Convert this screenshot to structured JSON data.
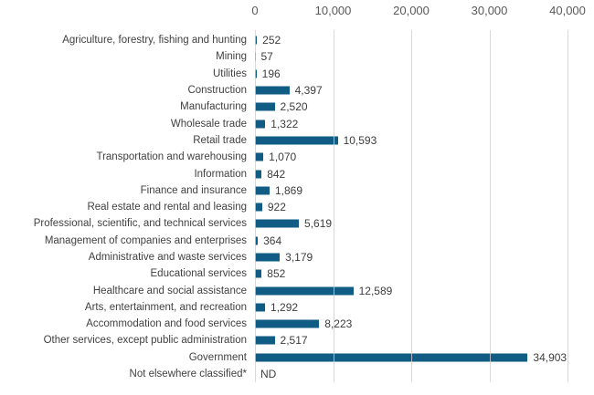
{
  "chart_data": {
    "type": "bar",
    "orientation": "horizontal",
    "title": "",
    "categories": [
      "Agriculture, forestry, fishing and hunting",
      "Mining",
      "Utilities",
      "Construction",
      "Manufacturing",
      "Wholesale trade",
      "Retail trade",
      "Transportation and warehousing",
      "Information",
      "Finance and insurance",
      "Real estate and rental and leasing",
      "Professional, scientific, and technical services",
      "Management of companies and enterprises",
      "Administrative and waste services",
      "Educational services",
      "Healthcare and social assistance",
      "Arts, entertainment, and recreation",
      "Accommodation and food services",
      "Other services, except public administration",
      "Government",
      "Not elsewhere classified*"
    ],
    "values": [
      252,
      57,
      196,
      4397,
      2520,
      1322,
      10593,
      1070,
      842,
      1869,
      922,
      5619,
      364,
      3179,
      852,
      12589,
      1292,
      8223,
      2517,
      34903,
      null
    ],
    "value_labels": [
      "252",
      "57",
      "196",
      "4,397",
      "2,520",
      "1,322",
      "10,593",
      "1,070",
      "842",
      "1,869",
      "922",
      "5,619",
      "364",
      "3,179",
      "852",
      "12,589",
      "1,292",
      "8,223",
      "2,517",
      "34,903",
      "ND"
    ],
    "no_data_label": "ND",
    "x_axis": {
      "position": "top",
      "min": 0,
      "max": 40000,
      "ticks": [
        0,
        10000,
        20000,
        30000,
        40000
      ],
      "tick_labels": [
        "0",
        "10,000",
        "20,000",
        "30,000",
        "40,000"
      ]
    },
    "grid": true,
    "gridlines_vertical": true,
    "legend": false
  },
  "colors": {
    "bar": "#115c84",
    "category_label_text": "#414141",
    "value_label_text": "#3d3d3d",
    "tick_text": "#595959",
    "gridline": "#d0d0d0",
    "background": "#ffffff"
  }
}
